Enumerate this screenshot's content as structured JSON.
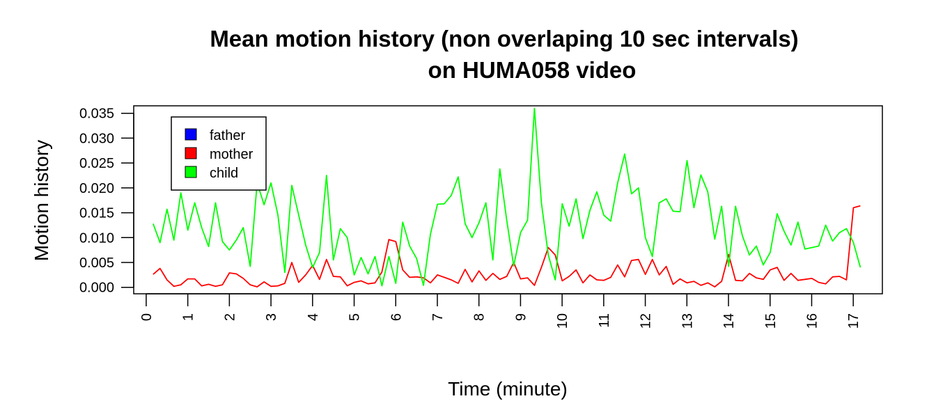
{
  "chart_data": {
    "type": "line",
    "title_lines": [
      "Mean motion history (non overlaping 10 sec intervals)",
      "on HUMA058 video"
    ],
    "xlabel": "Time (minute)",
    "ylabel": "Motion history",
    "xlim": [
      -0.3,
      17.7
    ],
    "ylim": [
      -0.0013,
      0.0365
    ],
    "x_ticks": [
      "0",
      "1",
      "2",
      "3",
      "4",
      "5",
      "6",
      "7",
      "8",
      "9",
      "10",
      "11",
      "12",
      "13",
      "14",
      "15",
      "16",
      "17"
    ],
    "y_ticks": [
      "0.000",
      "0.005",
      "0.010",
      "0.015",
      "0.020",
      "0.025",
      "0.030",
      "0.035"
    ],
    "grid": false,
    "legend": {
      "position": "top-left",
      "items": [
        {
          "label": "father",
          "color": "#0000ff"
        },
        {
          "label": "mother",
          "color": "#ff0000"
        },
        {
          "label": "child",
          "color": "#00ff00"
        }
      ]
    },
    "series": [
      {
        "name": "mother",
        "color": "#ff0000",
        "x_start": 0.1667,
        "x_step": 0.1667,
        "values": [
          0.0026,
          0.0038,
          0.0015,
          0.0002,
          0.0005,
          0.0017,
          0.0017,
          0.0003,
          0.0006,
          0.0002,
          0.0005,
          0.0029,
          0.0027,
          0.0018,
          0.0005,
          0.0001,
          0.0011,
          0.0002,
          0.0003,
          0.0008,
          0.005,
          0.001,
          0.0025,
          0.0044,
          0.0016,
          0.0056,
          0.0022,
          0.0021,
          0.0003,
          0.001,
          0.0013,
          0.0007,
          0.0009,
          0.0031,
          0.0096,
          0.0092,
          0.0035,
          0.002,
          0.0021,
          0.0019,
          0.0009,
          0.0025,
          0.002,
          0.0015,
          0.0008,
          0.0036,
          0.0011,
          0.0033,
          0.0014,
          0.0028,
          0.0016,
          0.0022,
          0.005,
          0.0017,
          0.0019,
          0.0004,
          0.004,
          0.008,
          0.0065,
          0.0013,
          0.0022,
          0.0035,
          0.0009,
          0.0025,
          0.0015,
          0.0014,
          0.002,
          0.0045,
          0.0021,
          0.0054,
          0.0056,
          0.0026,
          0.0056,
          0.0025,
          0.0042,
          0.0006,
          0.0017,
          0.0009,
          0.0012,
          0.0004,
          0.0009,
          0.0001,
          0.0012,
          0.0066,
          0.0014,
          0.0013,
          0.0028,
          0.0019,
          0.0016,
          0.0035,
          0.004,
          0.0014,
          0.0028,
          0.0014,
          0.0016,
          0.0018,
          0.001,
          0.0007,
          0.0021,
          0.0022,
          0.0015,
          0.016,
          0.0164
        ]
      },
      {
        "name": "child",
        "color": "#00ff00",
        "x_start": 0.1667,
        "x_step": 0.1667,
        "values": [
          0.0128,
          0.009,
          0.0157,
          0.0095,
          0.019,
          0.0115,
          0.017,
          0.012,
          0.0082,
          0.017,
          0.0092,
          0.0075,
          0.0095,
          0.012,
          0.0042,
          0.021,
          0.0166,
          0.021,
          0.0145,
          0.003,
          0.0205,
          0.0145,
          0.0085,
          0.004,
          0.007,
          0.0225,
          0.0055,
          0.0118,
          0.01,
          0.0025,
          0.006,
          0.0027,
          0.0062,
          0.0003,
          0.0062,
          0.0008,
          0.0131,
          0.0083,
          0.0058,
          0.0004,
          0.0107,
          0.0167,
          0.0168,
          0.0185,
          0.0222,
          0.0128,
          0.01,
          0.013,
          0.017,
          0.0055,
          0.0238,
          0.0135,
          0.0043,
          0.011,
          0.0135,
          0.036,
          0.017,
          0.0065,
          0.0015,
          0.0168,
          0.0123,
          0.0178,
          0.0098,
          0.0155,
          0.0192,
          0.0145,
          0.0133,
          0.021,
          0.0268,
          0.0188,
          0.02,
          0.01,
          0.0062,
          0.017,
          0.0178,
          0.0153,
          0.0152,
          0.0255,
          0.016,
          0.0226,
          0.0192,
          0.0097,
          0.0163,
          0.0042,
          0.0163,
          0.0103,
          0.0065,
          0.0083,
          0.0045,
          0.007,
          0.0148,
          0.0113,
          0.0085,
          0.0131,
          0.0077,
          0.008,
          0.0083,
          0.0125,
          0.0093,
          0.011,
          0.0118,
          0.009,
          0.004
        ]
      }
    ]
  }
}
